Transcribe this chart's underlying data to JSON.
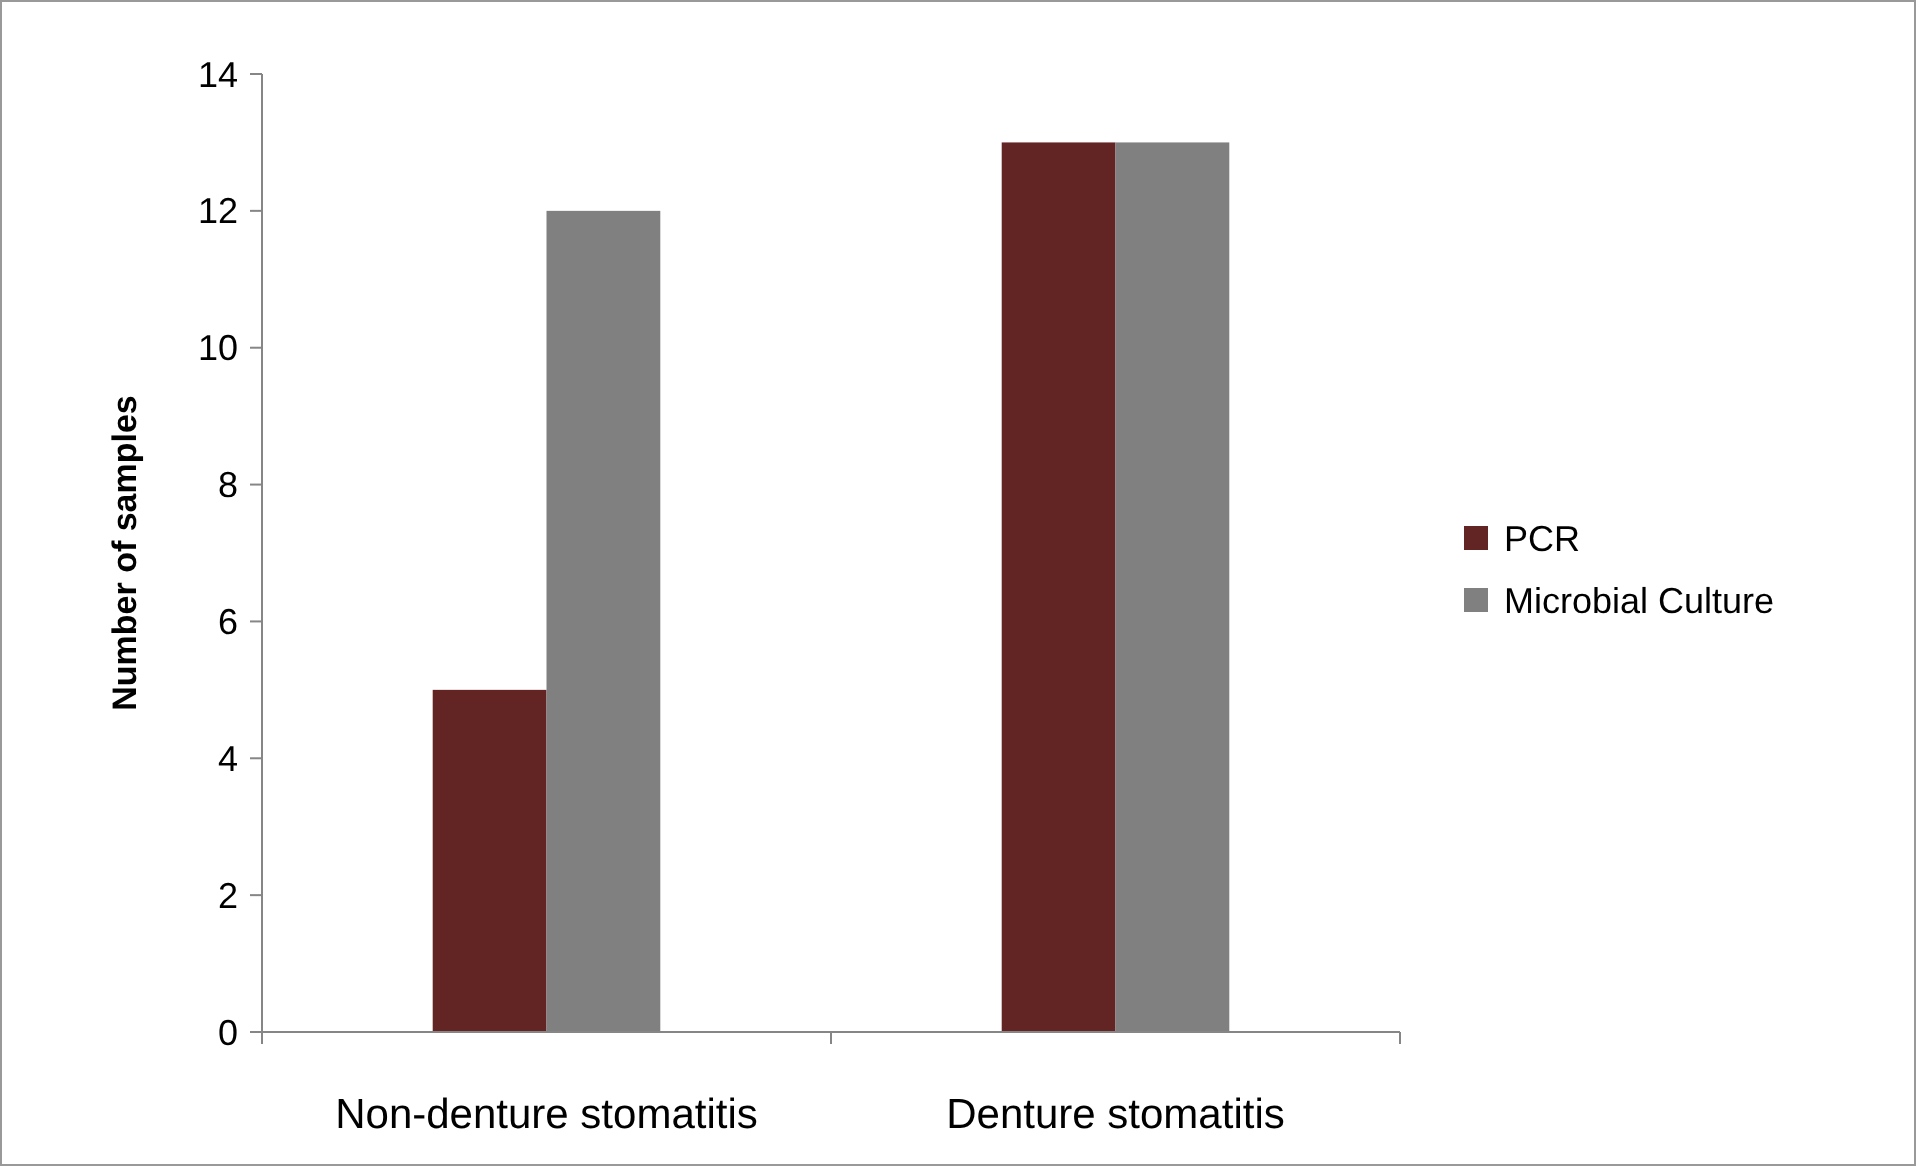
{
  "chart_data": {
    "type": "bar",
    "ylabel": "Number of samples",
    "categories": [
      "Non-denture stomatitis",
      "Denture stomatitis"
    ],
    "series": [
      {
        "name": "PCR",
        "color": "#632523",
        "values": [
          5,
          13
        ]
      },
      {
        "name": "Microbial Culture",
        "color": "#808080",
        "values": [
          12,
          13
        ]
      }
    ],
    "ylim": [
      0,
      14
    ],
    "yticks": [
      0,
      2,
      4,
      6,
      8,
      10,
      12,
      14
    ],
    "grid": false,
    "legend": "right"
  }
}
